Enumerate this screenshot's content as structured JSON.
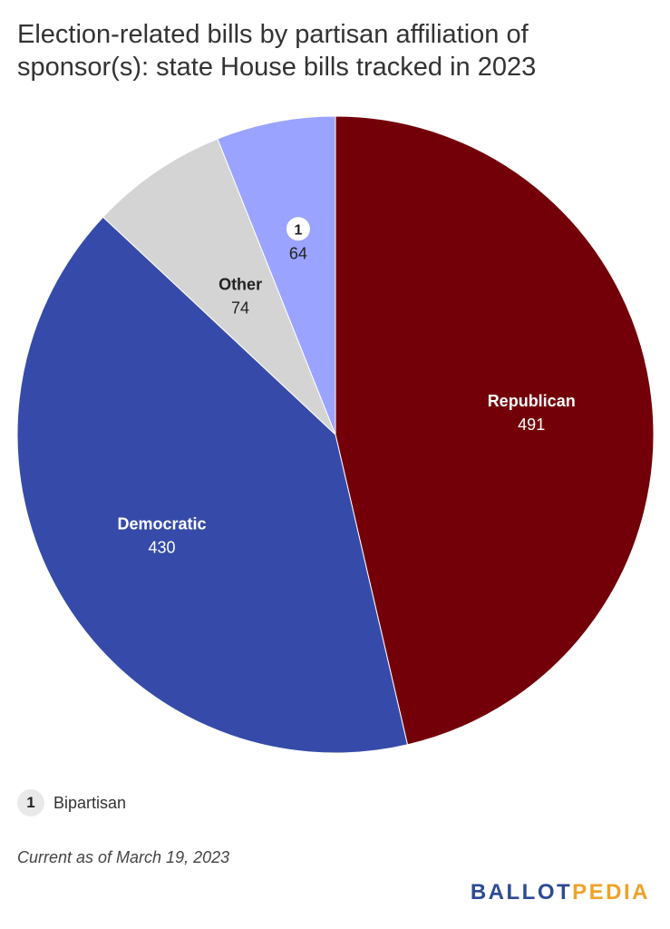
{
  "title": "Election-related bills by partisan affiliation of sponsor(s): state House bills tracked in 2023",
  "chart_data": {
    "type": "pie",
    "start_angle_deg": 0,
    "direction": "clockwise",
    "slices": [
      {
        "label": "Republican",
        "value": 491,
        "color": "#730008",
        "label_color": "#ffffff",
        "badge": ""
      },
      {
        "label": "Democratic",
        "value": 430,
        "color": "#364ba9",
        "label_color": "#ffffff",
        "badge": ""
      },
      {
        "label": "Other",
        "value": 74,
        "color": "#d4d4d4",
        "label_color": "#222222",
        "badge": ""
      },
      {
        "label": "",
        "value": 64,
        "color": "#9aa3ff",
        "label_color": "#222222",
        "badge": "1"
      }
    ]
  },
  "legend": {
    "badge": "1",
    "text": "Bipartisan"
  },
  "note": "Current as of March 19, 2023",
  "logo": {
    "part1": "BALLOT",
    "part2": "PEDIA"
  }
}
